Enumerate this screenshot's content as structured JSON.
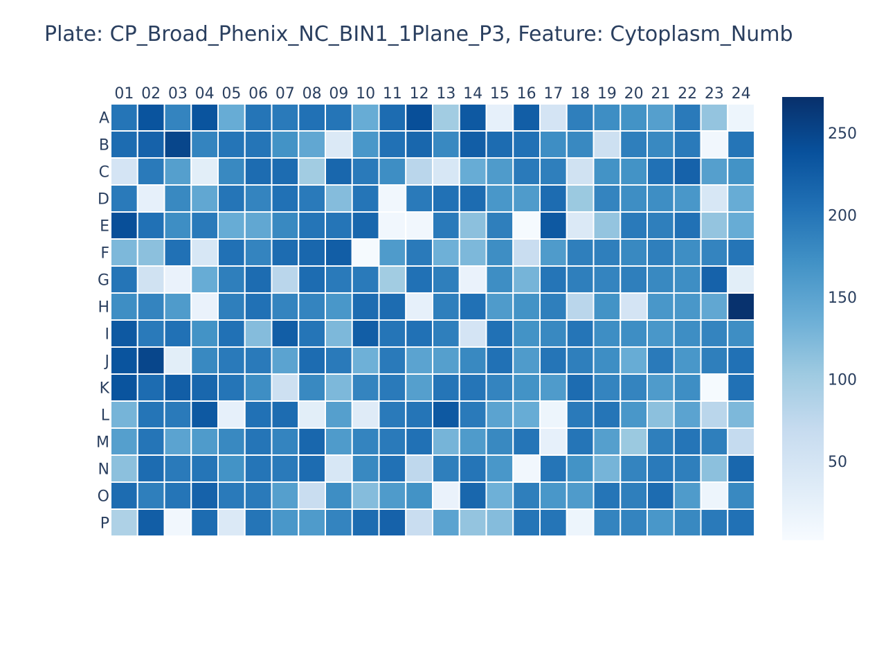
{
  "chart_data": {
    "type": "heatmap",
    "title": "Plate: CP_Broad_Phenix_NC_BIN1_1Plane_P3, Feature: Cytoplasm_Numb",
    "x_categories": [
      "01",
      "02",
      "03",
      "04",
      "05",
      "06",
      "07",
      "08",
      "09",
      "10",
      "11",
      "12",
      "13",
      "14",
      "15",
      "16",
      "17",
      "18",
      "19",
      "20",
      "21",
      "22",
      "23",
      "24"
    ],
    "y_categories": [
      "A",
      "B",
      "C",
      "D",
      "E",
      "F",
      "G",
      "H",
      "I",
      "J",
      "K",
      "L",
      "M",
      "N",
      "O",
      "P"
    ],
    "z": [
      [
        200,
        235,
        185,
        235,
        140,
        200,
        195,
        205,
        200,
        140,
        210,
        240,
        100,
        230,
        25,
        225,
        50,
        190,
        175,
        170,
        155,
        195,
        110,
        15
      ],
      [
        210,
        220,
        250,
        185,
        200,
        200,
        170,
        145,
        40,
        165,
        205,
        215,
        180,
        225,
        210,
        205,
        175,
        180,
        60,
        190,
        180,
        195,
        10,
        200
      ],
      [
        50,
        195,
        155,
        30,
        180,
        210,
        210,
        100,
        215,
        195,
        175,
        80,
        45,
        140,
        160,
        195,
        190,
        55,
        170,
        170,
        205,
        220,
        155,
        170
      ],
      [
        195,
        25,
        180,
        145,
        200,
        185,
        205,
        195,
        120,
        200,
        10,
        195,
        205,
        210,
        165,
        160,
        210,
        105,
        185,
        175,
        175,
        165,
        45,
        140
      ],
      [
        240,
        205,
        175,
        195,
        140,
        145,
        180,
        200,
        200,
        215,
        10,
        10,
        195,
        115,
        190,
        5,
        230,
        40,
        110,
        195,
        190,
        205,
        110,
        140
      ],
      [
        125,
        115,
        205,
        45,
        205,
        185,
        210,
        215,
        225,
        5,
        160,
        195,
        135,
        125,
        175,
        65,
        160,
        190,
        190,
        180,
        190,
        175,
        185,
        200
      ],
      [
        200,
        55,
        20,
        140,
        190,
        210,
        80,
        210,
        195,
        195,
        100,
        205,
        190,
        20,
        175,
        130,
        200,
        190,
        185,
        190,
        180,
        175,
        220,
        30
      ],
      [
        175,
        185,
        160,
        20,
        190,
        205,
        185,
        185,
        165,
        210,
        210,
        25,
        190,
        205,
        160,
        170,
        190,
        80,
        170,
        50,
        165,
        165,
        145,
        270
      ],
      [
        230,
        195,
        205,
        170,
        205,
        120,
        225,
        200,
        125,
        225,
        200,
        205,
        190,
        50,
        205,
        170,
        180,
        200,
        175,
        175,
        165,
        175,
        185,
        175
      ],
      [
        235,
        250,
        30,
        180,
        195,
        195,
        150,
        210,
        195,
        135,
        195,
        150,
        155,
        180,
        205,
        160,
        200,
        190,
        175,
        140,
        195,
        165,
        190,
        205
      ],
      [
        235,
        210,
        225,
        215,
        200,
        175,
        60,
        180,
        125,
        185,
        195,
        155,
        200,
        200,
        185,
        170,
        160,
        210,
        185,
        185,
        160,
        175,
        5,
        205
      ],
      [
        130,
        200,
        195,
        230,
        25,
        205,
        210,
        30,
        155,
        35,
        195,
        200,
        230,
        195,
        150,
        140,
        15,
        195,
        200,
        165,
        115,
        150,
        80,
        125
      ],
      [
        155,
        200,
        150,
        160,
        180,
        200,
        185,
        215,
        160,
        185,
        195,
        205,
        130,
        160,
        180,
        200,
        25,
        200,
        155,
        105,
        190,
        200,
        190,
        70
      ],
      [
        115,
        210,
        195,
        200,
        170,
        200,
        195,
        210,
        45,
        180,
        205,
        75,
        190,
        200,
        165,
        10,
        200,
        170,
        130,
        185,
        195,
        190,
        115,
        215
      ],
      [
        210,
        190,
        200,
        220,
        195,
        195,
        155,
        65,
        175,
        120,
        160,
        170,
        20,
        215,
        135,
        190,
        165,
        160,
        200,
        190,
        210,
        160,
        15,
        180
      ],
      [
        90,
        225,
        10,
        210,
        40,
        200,
        165,
        160,
        185,
        210,
        220,
        65,
        150,
        110,
        120,
        200,
        200,
        15,
        185,
        185,
        165,
        180,
        195,
        205
      ]
    ],
    "colorscale": "Blues",
    "zmin": 2,
    "zmax": 272,
    "colorbar": {
      "tickvals": [
        50,
        100,
        150,
        200,
        250
      ],
      "ticktext": [
        "50",
        "100",
        "150",
        "200",
        "250"
      ]
    },
    "colors": {
      "title": "#2a3f5f",
      "grid_line": "#ffffff"
    }
  }
}
